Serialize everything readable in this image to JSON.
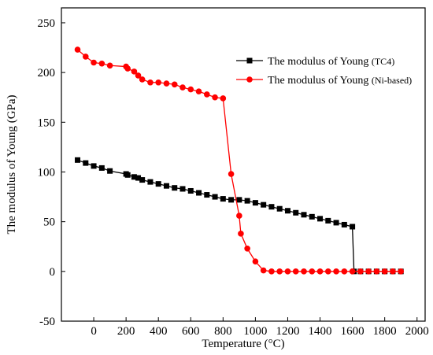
{
  "chart_data": {
    "type": "line",
    "xlabel": "Temperature (°C)",
    "ylabel": "The modulus of Young (GPa)",
    "xlim": [
      -200,
      2050
    ],
    "ylim": [
      -50,
      265
    ],
    "x_ticks": [
      0,
      200,
      400,
      600,
      800,
      1000,
      1200,
      1400,
      1600,
      1800,
      2000
    ],
    "y_ticks": [
      -50,
      0,
      50,
      100,
      150,
      200,
      250
    ],
    "legend_position": "top-right",
    "series": [
      {
        "name": "The modulus of Young",
        "name_suffix": "(TC4)",
        "color": "#000000",
        "marker": "square",
        "x": [
          -100,
          -50,
          0,
          50,
          100,
          200,
          210,
          250,
          275,
          300,
          350,
          400,
          450,
          500,
          550,
          600,
          650,
          700,
          750,
          800,
          850,
          900,
          950,
          1000,
          1050,
          1100,
          1150,
          1200,
          1250,
          1300,
          1350,
          1400,
          1450,
          1500,
          1550,
          1600,
          1610,
          1650,
          1700,
          1750,
          1800,
          1850,
          1900
        ],
        "y": [
          112,
          109,
          106,
          104,
          101,
          98,
          97,
          95,
          94,
          92,
          90,
          88,
          86,
          84,
          83,
          81,
          79,
          77,
          75,
          73,
          72,
          72,
          71,
          69,
          67,
          65,
          63,
          61,
          59,
          57,
          55,
          53,
          51,
          49,
          47,
          45,
          0,
          0,
          0,
          0,
          0,
          0,
          0
        ]
      },
      {
        "name": "The modulus of Young",
        "name_suffix": "(Ni-based)",
        "color": "#ff0000",
        "marker": "circle",
        "x": [
          -100,
          -50,
          0,
          50,
          100,
          200,
          210,
          250,
          275,
          300,
          350,
          400,
          450,
          500,
          550,
          600,
          650,
          700,
          750,
          800,
          850,
          900,
          910,
          950,
          1000,
          1050,
          1100,
          1150,
          1200,
          1250,
          1300,
          1350,
          1400,
          1450,
          1500,
          1550,
          1600,
          1650,
          1700,
          1750,
          1800,
          1850,
          1900
        ],
        "y": [
          223,
          216,
          210,
          209,
          207,
          206,
          204,
          201,
          197,
          193,
          190,
          190,
          189,
          188,
          185,
          183,
          181,
          178,
          175,
          174,
          98,
          56,
          38,
          23,
          10,
          1,
          0,
          0,
          0,
          0,
          0,
          0,
          0,
          0,
          0,
          0,
          0,
          0,
          0,
          0,
          0,
          0,
          0
        ]
      }
    ]
  }
}
